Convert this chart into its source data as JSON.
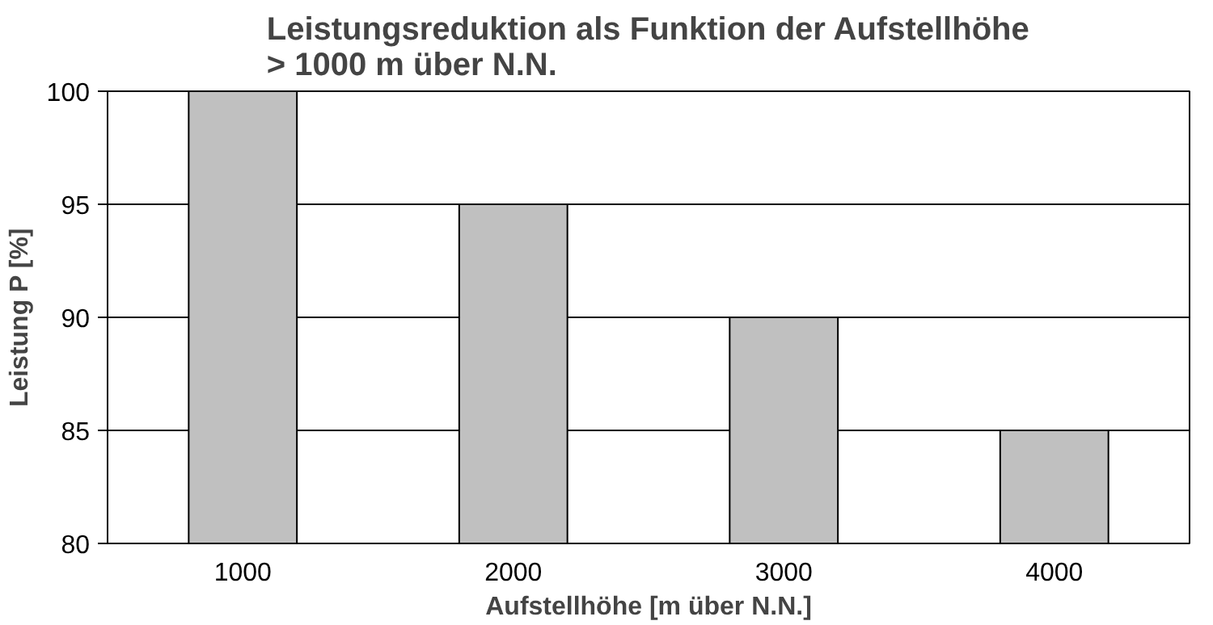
{
  "chart_data": {
    "type": "bar",
    "title": "Leistungsreduktion als Funktion der Aufstellhöhe\n> 1000 m über N.N.",
    "xlabel": "Aufstellhöhe [m über N.N.]",
    "ylabel": "Leistung P [%]",
    "categories": [
      "1000",
      "2000",
      "3000",
      "4000"
    ],
    "values": [
      100,
      95,
      90,
      85
    ],
    "color": "#c0c0c0",
    "ylim": [
      80,
      100
    ],
    "yticks": [
      80,
      85,
      90,
      95,
      100
    ],
    "grid": "y"
  }
}
